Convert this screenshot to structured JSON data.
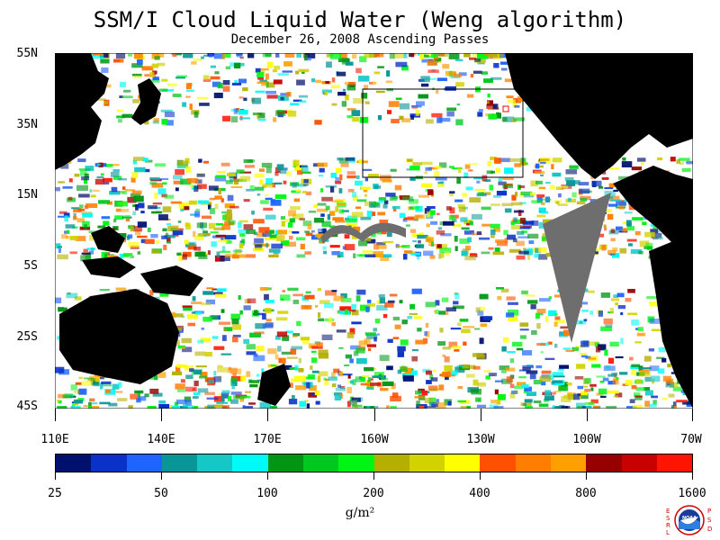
{
  "header": {
    "title": "SSM/I Cloud Liquid Water (Weng algorithm)",
    "subtitle": "December 26, 2008  Ascending Passes"
  },
  "map": {
    "lat_labels": [
      "55N",
      "35N",
      "15N",
      "5S",
      "25S",
      "45S"
    ],
    "lon_labels": [
      "110E",
      "140E",
      "170E",
      "160W",
      "130W",
      "100W",
      "70W"
    ],
    "colors": {
      "land": "#000000",
      "no_data": "#6e6e6e",
      "clear": "#ffffff",
      "box_outline": "#000000",
      "marker": "#ff0000"
    }
  },
  "colorbar": {
    "colors": [
      "#00106e",
      "#0a32c8",
      "#1e64ff",
      "#0a9696",
      "#14c8c8",
      "#00fafa",
      "#009614",
      "#00c81e",
      "#00f514",
      "#b4af00",
      "#d2d200",
      "#ffff00",
      "#ff5000",
      "#ff7d00",
      "#ffa000",
      "#960000",
      "#c80000",
      "#ff1400"
    ],
    "tick_labels": [
      "25",
      "50",
      "100",
      "200",
      "400",
      "800",
      "1600"
    ],
    "units": "g/m²"
  },
  "logo": {
    "left_letters": "ESRL",
    "right_letters": "PSD",
    "center_text": "NOAA"
  }
}
